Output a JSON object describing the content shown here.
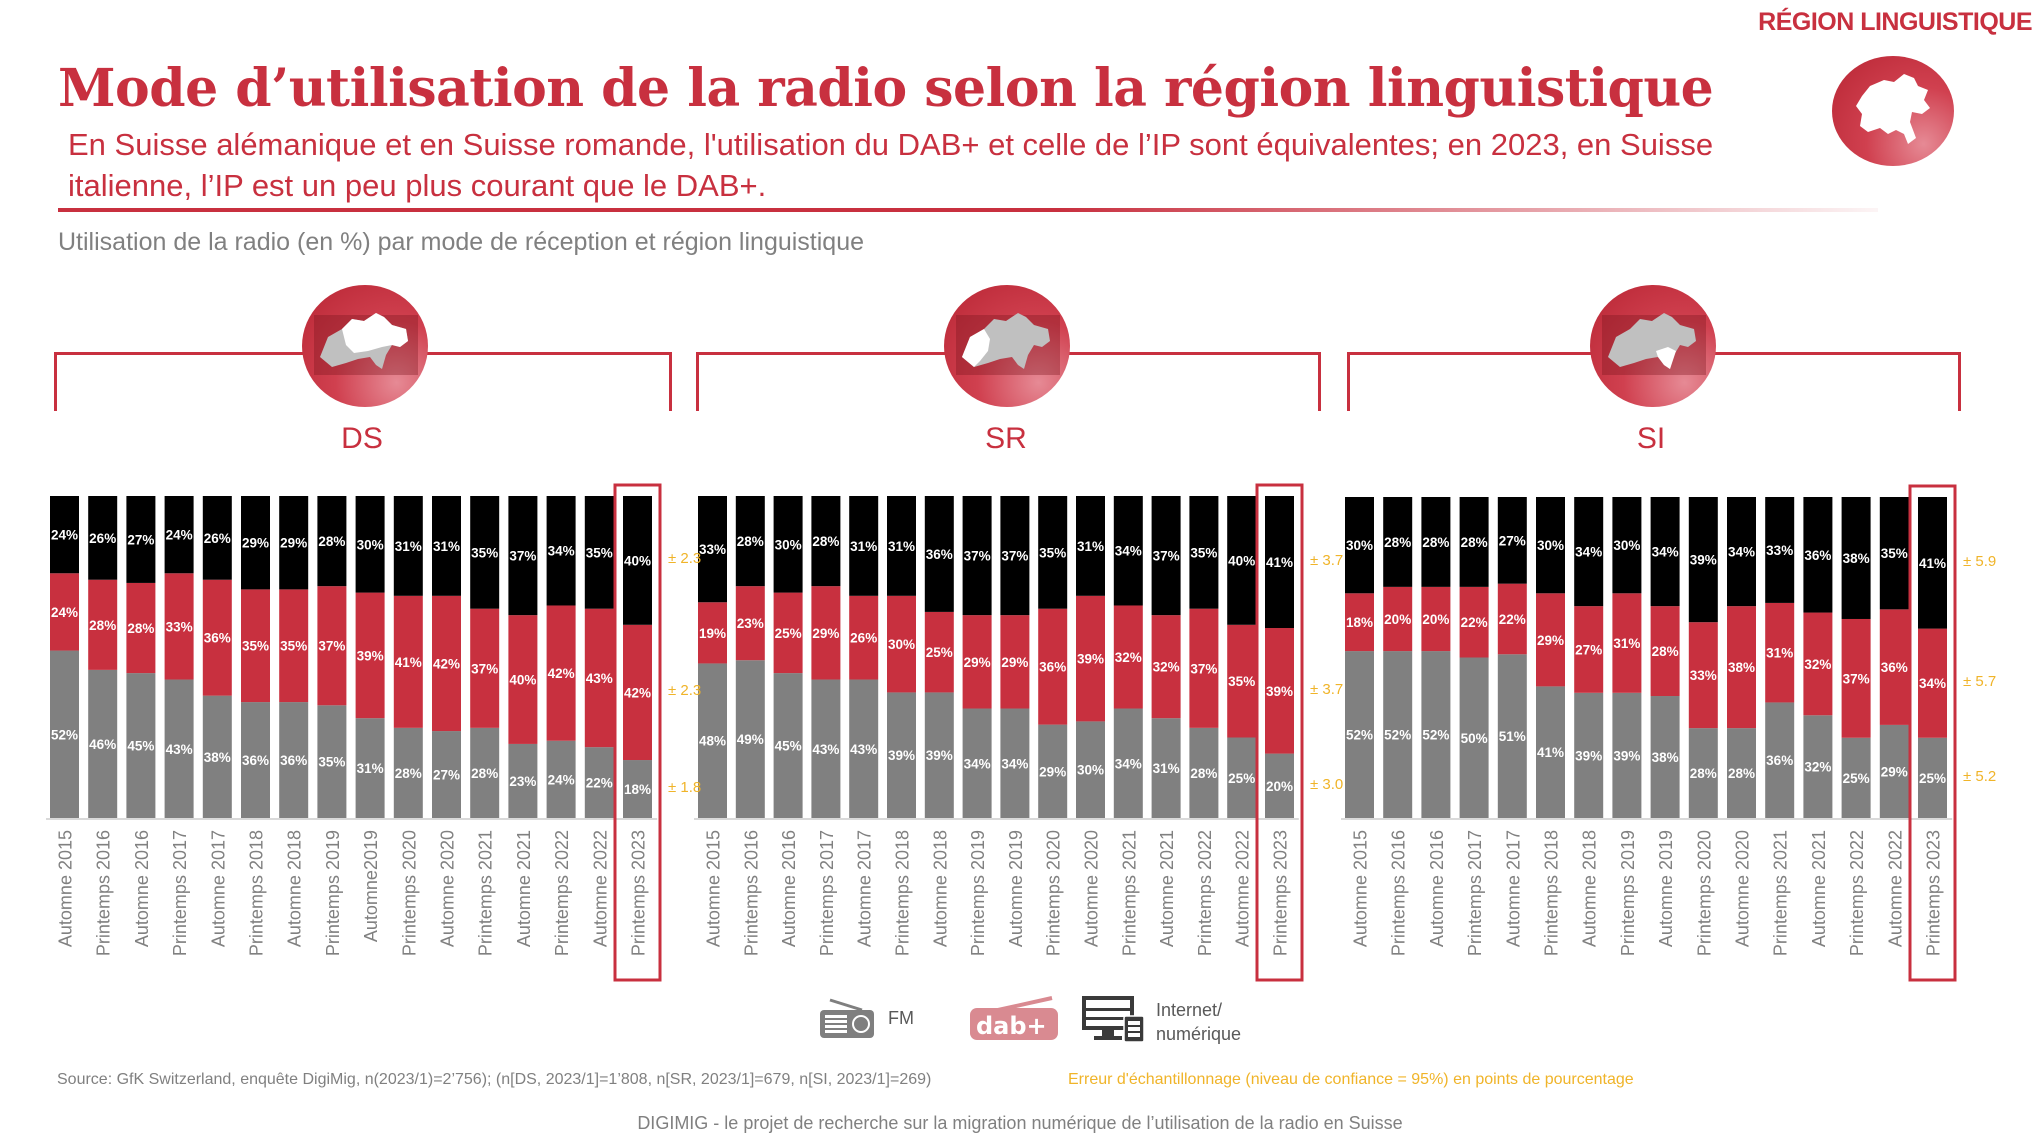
{
  "header": {
    "region_tag": "RÉGION LINGUISTIQUE",
    "title": "Mode d’utilisation de la radio selon la région linguistique",
    "subtitle": "En Suisse alémanique et en Suisse romande, l'utilisation du DAB+ et celle de l’IP sont équivalentes; en 2023, en Suisse italienne, l’IP est un peu plus courant que le DAB+.",
    "chart_subtitle": "Utilisation de la radio (en %) par mode de réception et région linguistique"
  },
  "colors": {
    "fm": "#808080",
    "dab": "#c8303f",
    "internet": "#000000",
    "accent": "#c8303f",
    "error": "#f0b429"
  },
  "legend": {
    "fm_label": "FM",
    "dab_label": "dab+",
    "internet_label_line1": "Internet/",
    "internet_label_line2": "numérique",
    "icons": [
      "radio-icon",
      "dab-plus-logo-icon",
      "computer-tablet-icon"
    ]
  },
  "footer": {
    "source": "Source: GfK Switzerland, enquête DigiMig, n(2023/1)=2’756); (n[DS, 2023/1]=1’808, n[SR, 2023/1]=679, n[SI, 2023/1]=269)",
    "error_note": "Erreur d'échantillonnage (niveau de confiance = 95%) en points de pourcentage",
    "project": "DIGIMIG - le projet de recherche sur la migration numérique de l’utilisation de la radio en Suisse"
  },
  "chart_data": [
    {
      "type": "bar",
      "stacked": true,
      "region": "DS",
      "title": "DS",
      "ylim": [
        0,
        100
      ],
      "highlighted_category": "Printemps 2023",
      "categories": [
        "Automne 2015",
        "Printemps 2016",
        "Automne 2016",
        "Printemps 2017",
        "Automne 2017",
        "Printemps 2018",
        "Automne 2018",
        "Printemps 2019",
        "Automne2019",
        "Printemps 2020",
        "Automne 2020",
        "Printemps 2021",
        "Automne 2021",
        "Printemps 2022",
        "Automne 2022",
        "Printemps 2023"
      ],
      "series": [
        {
          "name": "FM",
          "values": [
            52,
            46,
            45,
            43,
            38,
            36,
            36,
            35,
            31,
            28,
            27,
            28,
            23,
            24,
            22,
            18
          ]
        },
        {
          "name": "DAB+",
          "values": [
            24,
            28,
            28,
            33,
            36,
            35,
            35,
            37,
            39,
            41,
            42,
            37,
            40,
            42,
            43,
            42
          ]
        },
        {
          "name": "Internet/numérique",
          "values": [
            24,
            26,
            27,
            24,
            26,
            29,
            29,
            28,
            30,
            31,
            31,
            35,
            37,
            34,
            35,
            40
          ]
        }
      ],
      "error_margins": {
        "Internet/numérique": "± 2.3",
        "DAB+": "± 2.3",
        "FM": "± 1.8"
      }
    },
    {
      "type": "bar",
      "stacked": true,
      "region": "SR",
      "title": "SR",
      "ylim": [
        0,
        100
      ],
      "highlighted_category": "Printemps 2023",
      "categories": [
        "Automne 2015",
        "Printemps 2016",
        "Automne 2016",
        "Printemps 2017",
        "Automne 2017",
        "Printemps 2018",
        "Automne 2018",
        "Printemps 2019",
        "Automne 2019",
        "Printemps 2020",
        "Automne 2020",
        "Printemps 2021",
        "Automne 2021",
        "Printemps 2022",
        "Automne 2022",
        "Printemps 2023"
      ],
      "series": [
        {
          "name": "FM",
          "values": [
            48,
            49,
            45,
            43,
            43,
            39,
            39,
            34,
            34,
            29,
            30,
            34,
            31,
            28,
            25,
            20
          ]
        },
        {
          "name": "DAB+",
          "values": [
            19,
            23,
            25,
            29,
            26,
            30,
            25,
            29,
            29,
            36,
            39,
            32,
            32,
            37,
            35,
            39
          ]
        },
        {
          "name": "Internet/numérique",
          "values": [
            33,
            28,
            30,
            28,
            31,
            31,
            36,
            37,
            37,
            35,
            31,
            34,
            37,
            35,
            40,
            41
          ]
        }
      ],
      "error_margins": {
        "Internet/numérique": "± 3.7",
        "DAB+": "± 3.7",
        "FM": "± 3.0"
      }
    },
    {
      "type": "bar",
      "stacked": true,
      "region": "SI",
      "title": "SI",
      "ylim": [
        0,
        100
      ],
      "highlighted_category": "Printemps 2023",
      "categories": [
        "Automne 2015",
        "Printemps 2016",
        "Automne 2016",
        "Printemps 2017",
        "Automne 2017",
        "Printemps 2018",
        "Automne 2018",
        "Printemps 2019",
        "Automne 2019",
        "Printemps 2020",
        "Automne 2020",
        "Printemps 2021",
        "Automne 2021",
        "Printemps 2022",
        "Automne 2022",
        "Printemps 2023"
      ],
      "series": [
        {
          "name": "FM",
          "values": [
            52,
            52,
            52,
            50,
            51,
            41,
            39,
            39,
            38,
            28,
            28,
            36,
            32,
            25,
            29,
            25
          ]
        },
        {
          "name": "DAB+",
          "values": [
            18,
            20,
            20,
            22,
            22,
            29,
            27,
            31,
            28,
            33,
            38,
            31,
            32,
            37,
            36,
            34
          ]
        },
        {
          "name": "Internet/numérique",
          "values": [
            30,
            28,
            28,
            28,
            27,
            30,
            34,
            30,
            34,
            39,
            34,
            33,
            36,
            38,
            35,
            41
          ]
        }
      ],
      "error_margins": {
        "Internet/numérique": "± 5.9",
        "DAB+": "± 5.7",
        "FM": "± 5.2"
      }
    }
  ]
}
